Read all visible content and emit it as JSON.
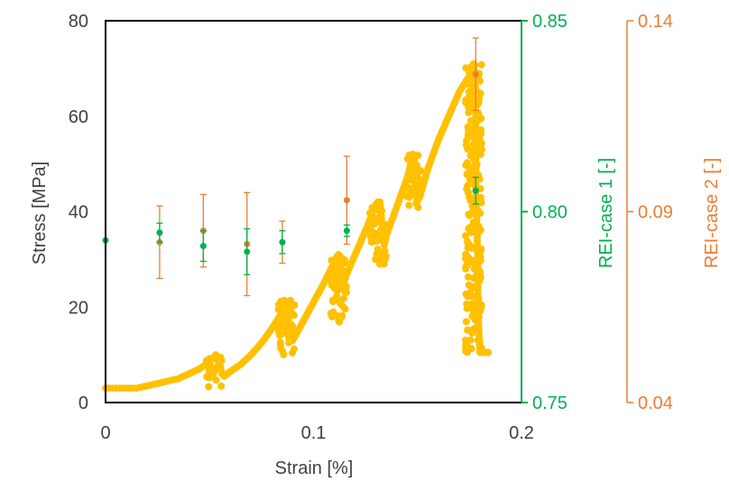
{
  "chart_data": {
    "type": "scatter",
    "xlabel": "Strain [%]",
    "ylabel": "Stress [MPa]",
    "y2label": "REI-case 1 [-]",
    "y3label": "REI-case 2 [-]",
    "xlim": [
      0,
      0.2
    ],
    "ylim": [
      0,
      80
    ],
    "y2lim": [
      0.75,
      0.85
    ],
    "y3lim": [
      0.04,
      0.14
    ],
    "x_ticks": [
      "0",
      "0.1",
      "0.2"
    ],
    "y_ticks": [
      "0",
      "20",
      "40",
      "60",
      "80"
    ],
    "y2_ticks": [
      "0.75",
      "0.80",
      "0.85"
    ],
    "y3_ticks": [
      "0.04",
      "0.09",
      "0.14"
    ],
    "grid": false,
    "colors": {
      "stress": "#FFC000",
      "case1": "#00B050",
      "case2": "#ED7D31",
      "axis": "#000000",
      "tick_text": "#404040"
    },
    "stress_curve": [
      [
        0.0,
        3.0
      ],
      [
        0.005,
        3.0
      ],
      [
        0.01,
        3.0
      ],
      [
        0.015,
        3.0
      ],
      [
        0.02,
        3.5
      ],
      [
        0.025,
        4.0
      ],
      [
        0.03,
        4.5
      ],
      [
        0.035,
        5.0
      ],
      [
        0.04,
        6.0
      ],
      [
        0.045,
        7.0
      ],
      [
        0.05,
        8.5
      ],
      [
        0.053,
        10.0
      ],
      [
        0.055,
        8.0
      ],
      [
        0.056,
        6.0
      ],
      [
        0.057,
        5.5
      ],
      [
        0.06,
        6.5
      ],
      [
        0.065,
        8.0
      ],
      [
        0.07,
        10.0
      ],
      [
        0.075,
        12.5
      ],
      [
        0.08,
        15.5
      ],
      [
        0.085,
        19.0
      ],
      [
        0.087,
        21.0
      ],
      [
        0.088,
        17.0
      ],
      [
        0.089,
        14.0
      ],
      [
        0.09,
        13.0
      ],
      [
        0.095,
        17.0
      ],
      [
        0.1,
        21.0
      ],
      [
        0.105,
        25.0
      ],
      [
        0.11,
        29.5
      ],
      [
        0.112,
        31.0
      ],
      [
        0.113,
        26.0
      ],
      [
        0.114,
        24.0
      ],
      [
        0.115,
        26.0
      ],
      [
        0.12,
        31.0
      ],
      [
        0.125,
        36.0
      ],
      [
        0.13,
        41.5
      ],
      [
        0.132,
        42.0
      ],
      [
        0.133,
        37.0
      ],
      [
        0.134,
        33.0
      ],
      [
        0.135,
        35.0
      ],
      [
        0.14,
        41.0
      ],
      [
        0.145,
        47.0
      ],
      [
        0.148,
        52.0
      ],
      [
        0.149,
        49.0
      ],
      [
        0.15,
        44.0
      ],
      [
        0.151,
        43.0
      ],
      [
        0.155,
        49.0
      ],
      [
        0.16,
        55.0
      ],
      [
        0.165,
        60.0
      ],
      [
        0.17,
        65.0
      ],
      [
        0.175,
        68.5
      ],
      [
        0.177,
        71.0
      ],
      [
        0.178,
        60.0
      ],
      [
        0.178,
        45.0
      ],
      [
        0.179,
        30.0
      ],
      [
        0.179,
        20.0
      ],
      [
        0.18,
        10.5
      ],
      [
        0.183,
        10.5
      ],
      [
        0.185,
        10.5
      ]
    ],
    "stress_clusters": [
      {
        "x": 0.052,
        "y_min": 3.0,
        "y_max": 10.0
      },
      {
        "x": 0.087,
        "y_min": 9.5,
        "y_max": 21.5
      },
      {
        "x": 0.112,
        "y_min": 16.5,
        "y_max": 31.0
      },
      {
        "x": 0.131,
        "y_min": 28.5,
        "y_max": 42.0
      },
      {
        "x": 0.148,
        "y_min": 40.5,
        "y_max": 52.0
      },
      {
        "x": 0.177,
        "y_min": 10.0,
        "y_max": 71.0
      }
    ],
    "series": [
      {
        "axis": "y2",
        "points": [
          {
            "x": 0.0,
            "y": 0.7925,
            "err": 0.0
          },
          {
            "x": 0.026,
            "y": 0.7945,
            "err": 0.0025
          },
          {
            "x": 0.047,
            "y": 0.791,
            "err": 0.004
          },
          {
            "x": 0.068,
            "y": 0.7895,
            "err": 0.006
          },
          {
            "x": 0.085,
            "y": 0.792,
            "err": 0.003
          },
          {
            "x": 0.116,
            "y": 0.795,
            "err": 0.0015
          },
          {
            "x": 0.178,
            "y": 0.8055,
            "err": 0.0035
          }
        ]
      },
      {
        "axis": "y3",
        "points": [
          {
            "x": 0.026,
            "y": 0.082,
            "err": 0.0095
          },
          {
            "x": 0.047,
            "y": 0.085,
            "err": 0.0095
          },
          {
            "x": 0.068,
            "y": 0.0815,
            "err": 0.0135
          },
          {
            "x": 0.085,
            "y": 0.082,
            "err": 0.0055
          },
          {
            "x": 0.116,
            "y": 0.093,
            "err": 0.0115
          },
          {
            "x": 0.178,
            "y": 0.126,
            "err": 0.0095
          }
        ]
      }
    ]
  }
}
